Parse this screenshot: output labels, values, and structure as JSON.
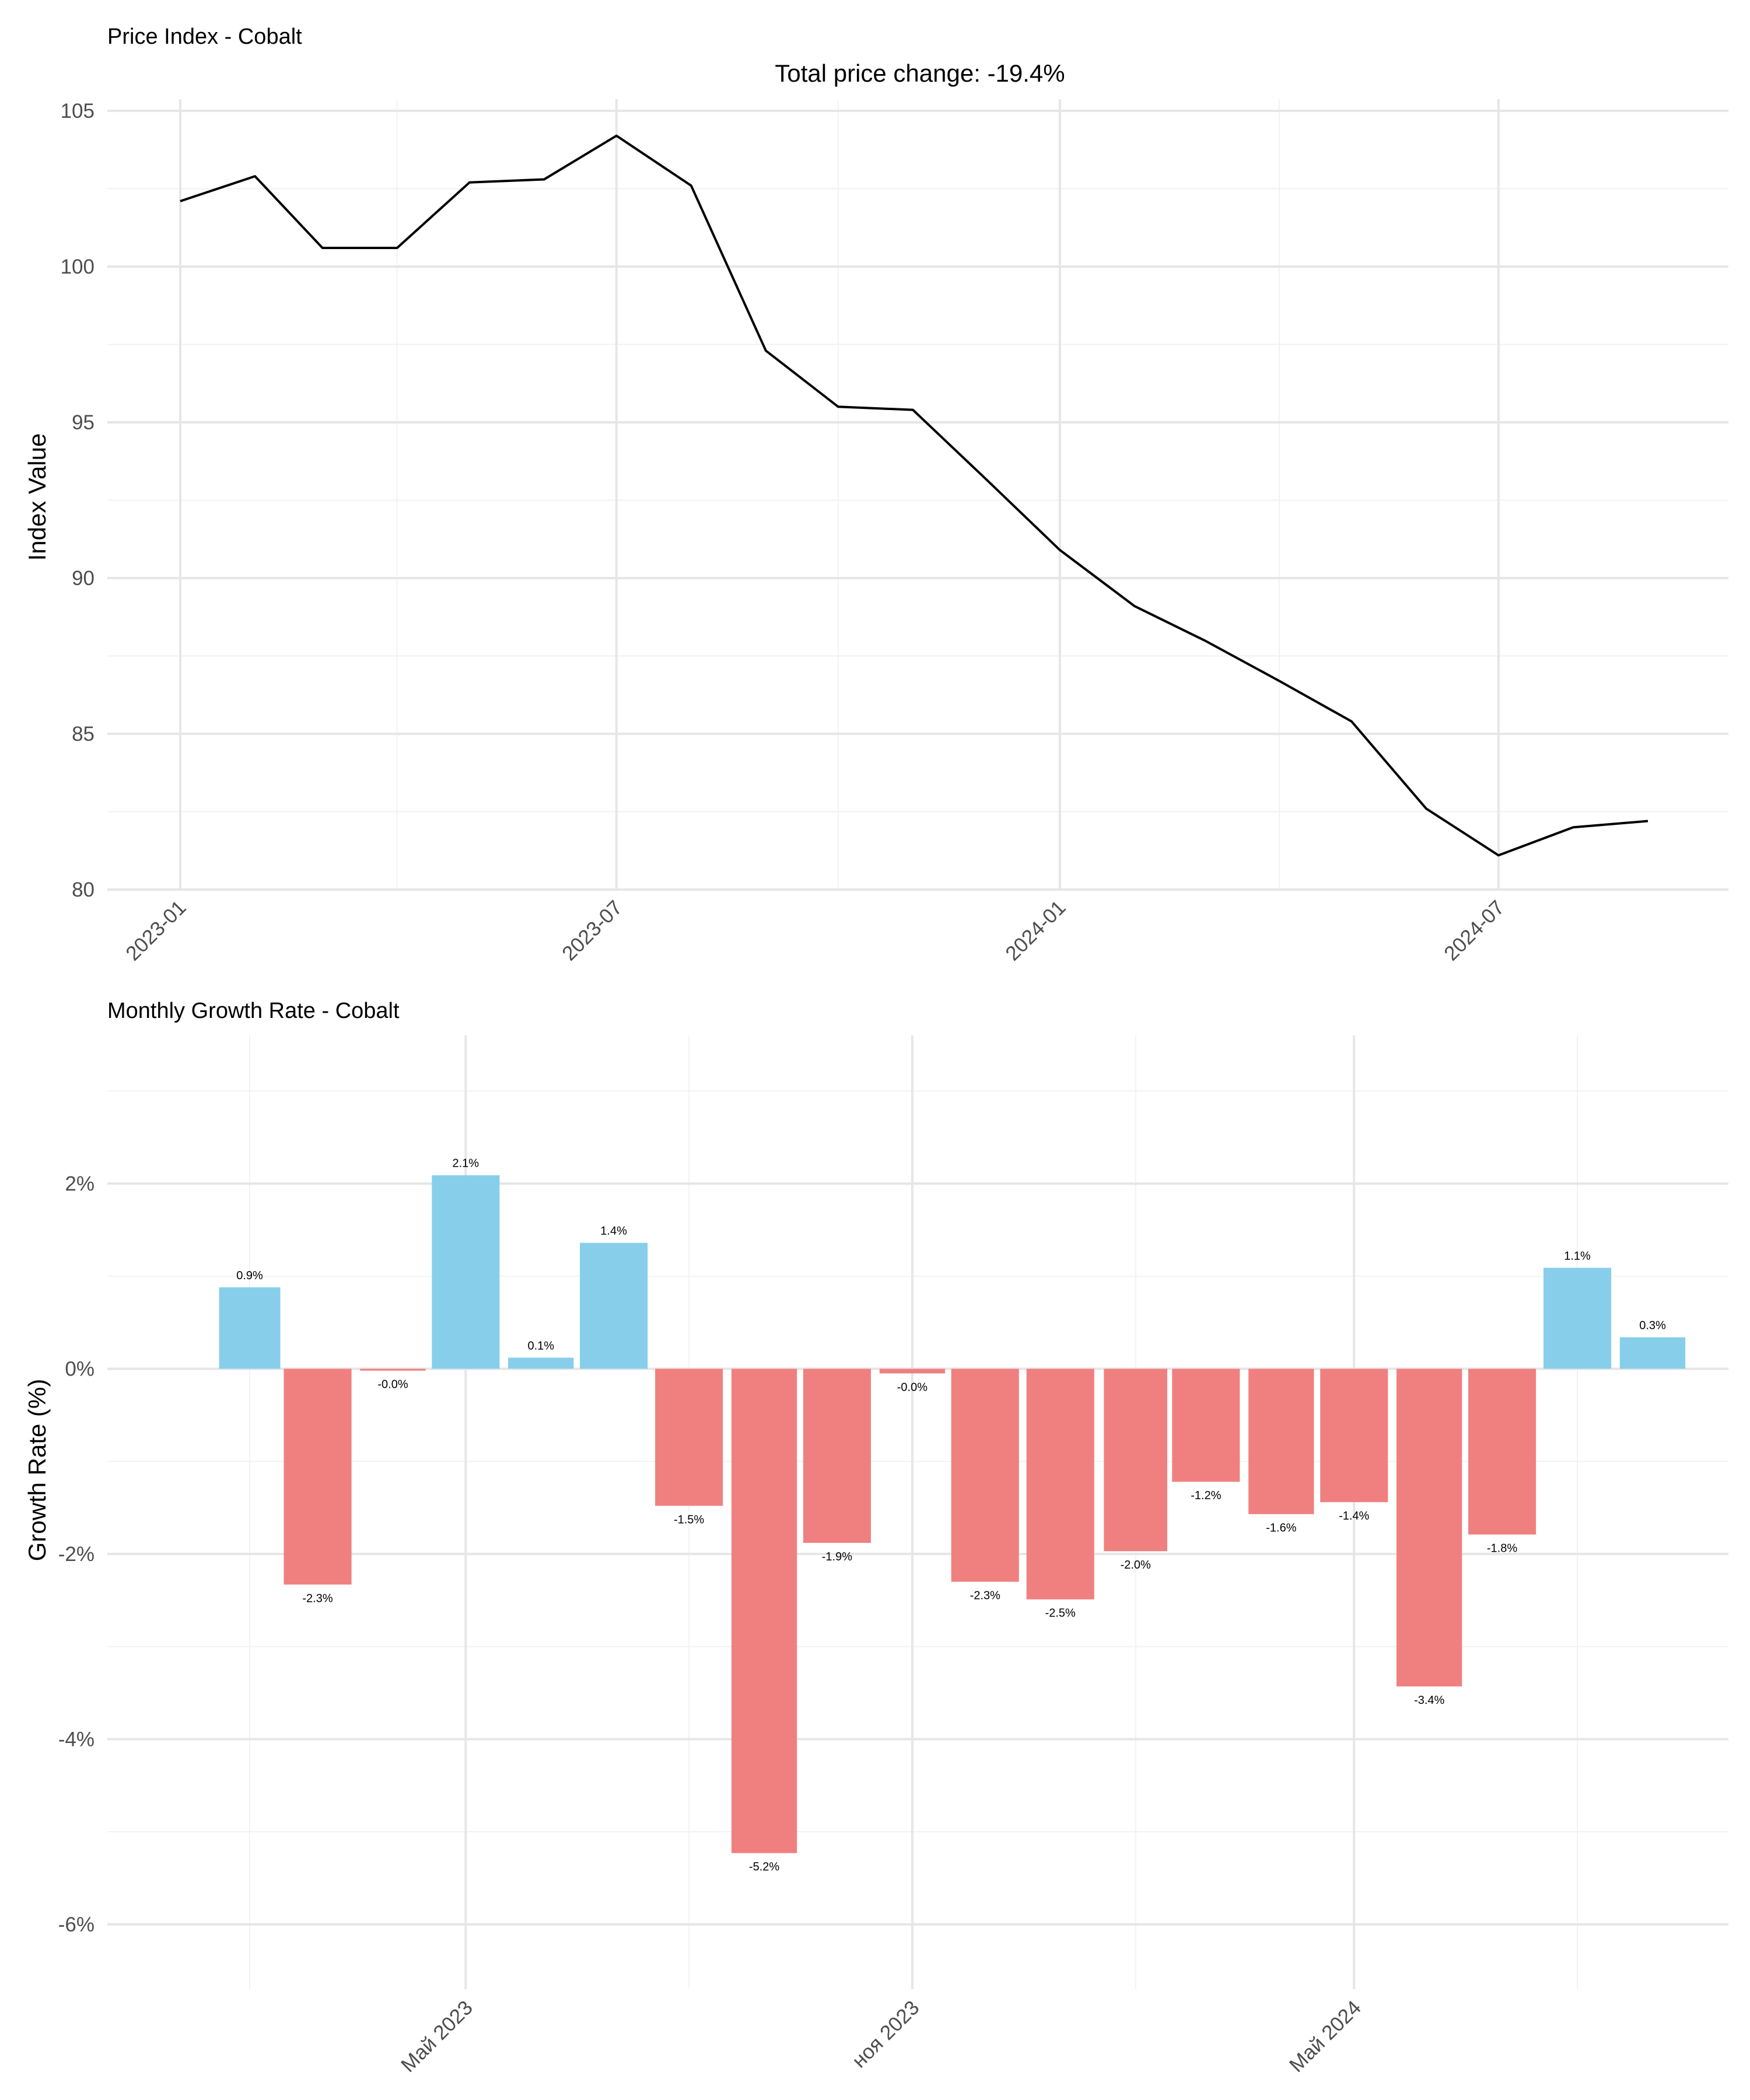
{
  "chart_data": [
    {
      "type": "line",
      "title": "Price Index - Cobalt",
      "subtitle": "Total price change: -19.4%",
      "xlabel": "",
      "ylabel": "Index Value",
      "x": [
        "2023-01-01",
        "2023-02-01",
        "2023-03-01",
        "2023-04-01",
        "2023-05-01",
        "2023-06-01",
        "2023-07-01",
        "2023-08-01",
        "2023-09-01",
        "2023-10-01",
        "2023-11-01",
        "2023-12-01",
        "2024-01-01",
        "2024-02-01",
        "2024-03-01",
        "2024-04-01",
        "2024-05-01",
        "2024-06-01",
        "2024-07-01",
        "2024-08-01",
        "2024-09-01"
      ],
      "series": [
        {
          "values": [
            102.1,
            102.9,
            100.6,
            100.6,
            102.7,
            102.8,
            104.2,
            102.6,
            97.3,
            95.5,
            95.4,
            93.2,
            90.9,
            89.1,
            88.0,
            86.7,
            85.4,
            82.6,
            81.1,
            82.0,
            82.2
          ]
        }
      ],
      "ylim": [
        80,
        105
      ],
      "yticks": [
        80,
        85,
        90,
        95,
        100,
        105
      ],
      "xticks": [
        "2023-01",
        "2023-07",
        "2024-01",
        "2024-07"
      ],
      "grid": true,
      "line_color": "#000000"
    },
    {
      "type": "bar",
      "title": "Monthly Growth Rate - Cobalt",
      "xlabel": "",
      "ylabel": "Growth Rate (%)",
      "x": [
        "2023-02-01",
        "2023-03-01",
        "2023-04-01",
        "2023-05-01",
        "2023-06-01",
        "2023-07-01",
        "2023-08-01",
        "2023-09-01",
        "2023-10-01",
        "2023-11-01",
        "2023-12-01",
        "2024-01-01",
        "2024-02-01",
        "2024-03-01",
        "2024-04-01",
        "2024-05-01",
        "2024-06-01",
        "2024-07-01",
        "2024-08-01",
        "2024-09-01"
      ],
      "values": [
        0.88,
        -2.33,
        -0.02,
        2.09,
        0.12,
        1.36,
        -1.48,
        -5.23,
        -1.88,
        -0.05,
        -2.3,
        -2.49,
        -1.97,
        -1.22,
        -1.57,
        -1.44,
        -3.43,
        -1.79,
        1.09,
        0.34
      ],
      "labels": [
        "0.9%",
        "-2.3%",
        "-0.0%",
        "2.1%",
        "0.1%",
        "1.4%",
        "-1.5%",
        "-5.2%",
        "-1.9%",
        "-0.0%",
        "-2.3%",
        "-2.5%",
        "-2.0%",
        "-1.2%",
        "-1.6%",
        "-1.4%",
        "-3.4%",
        "-1.8%",
        "1.1%",
        "0.3%"
      ],
      "ylim": [
        -6.7,
        3.6
      ],
      "yticks": [
        -6,
        -4,
        -2,
        0,
        2
      ],
      "ytick_labels": [
        "-6%",
        "-4%",
        "-2%",
        "0%",
        "2%"
      ],
      "xticks": [
        "Май 2023",
        "ноя 2023",
        "Май 2024"
      ],
      "grid": true,
      "colors": {
        "positive": "#87CEEB",
        "negative": "#F08080"
      }
    }
  ]
}
